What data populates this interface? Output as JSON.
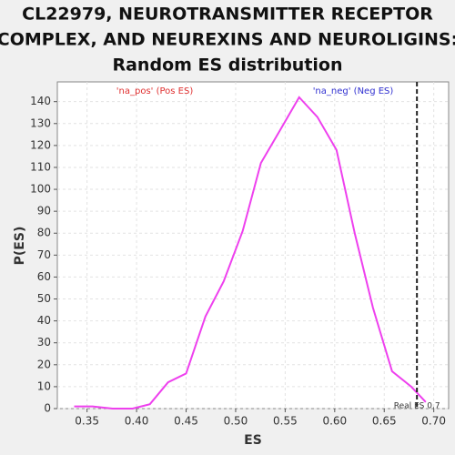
{
  "chart_data": {
    "type": "line",
    "title": [
      "CL22979, NEUROTRANSMITTER RECEPTOR",
      "COMPLEX, AND NEUREXINS AND NEUROLIGINS:",
      "Random ES distribution"
    ],
    "x_label": "ES",
    "y_label": "P(ES)",
    "x": [
      0.337,
      0.3555,
      0.3757,
      0.396,
      0.4134,
      0.4318,
      0.45,
      0.4695,
      0.4879,
      0.5071,
      0.5255,
      0.5449,
      0.5641,
      0.5825,
      0.6018,
      0.6202,
      0.6386,
      0.6579,
      0.6772,
      0.6919
    ],
    "values": [
      1,
      1,
      0,
      0,
      2,
      12,
      16,
      42,
      58,
      81,
      112,
      127,
      142,
      133,
      118,
      80,
      46,
      17,
      10,
      3
    ],
    "color": "#ee40ee",
    "xlim": [
      0.32,
      0.715
    ],
    "ylim": [
      0,
      149
    ],
    "xticks": [
      0.35,
      {
        "value": 0.4,
        "label": "0.40"
      },
      0.45,
      {
        "value": 0.5,
        "label": "0.50"
      },
      0.55,
      {
        "value": 0.6,
        "label": "0.60"
      },
      0.65,
      {
        "value": 0.7,
        "label": "0.70"
      }
    ],
    "yticks": [
      0,
      10,
      20,
      30,
      40,
      50,
      60,
      70,
      80,
      90,
      100,
      110,
      120,
      130,
      140
    ],
    "grid": true,
    "real_es": {
      "value": 0.683,
      "label": "Real ES 0.7"
    },
    "annotations": [
      {
        "text": "'na_pos' (Pos ES)",
        "color": "#e03030"
      },
      {
        "text": "'na_neg' (Neg ES)",
        "color": "#3030d0"
      }
    ]
  }
}
